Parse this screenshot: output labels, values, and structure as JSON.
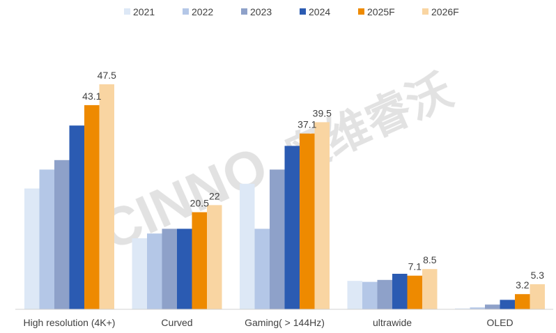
{
  "chart_data": {
    "type": "bar",
    "title": "",
    "xlabel": "",
    "ylabel": "",
    "ylim": [
      0,
      55
    ],
    "legend_position": "top",
    "categories": [
      "High resolution (4K+)",
      "Curved",
      "Gaming( > 144Hz)",
      "ultrawide",
      "OLED"
    ],
    "series": [
      {
        "name": "2021",
        "color": "#dde8f6",
        "values": [
          25.5,
          15.0,
          26.5,
          6.0,
          0.2
        ],
        "labels": [
          "",
          "",
          "",
          "",
          ""
        ]
      },
      {
        "name": "2022",
        "color": "#b4c7e7",
        "values": [
          29.5,
          16.0,
          17.0,
          5.8,
          0.4
        ],
        "labels": [
          "",
          "",
          "",
          "",
          ""
        ]
      },
      {
        "name": "2023",
        "color": "#8ea1c9",
        "values": [
          31.5,
          17.0,
          29.5,
          6.2,
          1.0
        ],
        "labels": [
          "",
          "",
          "",
          "",
          ""
        ]
      },
      {
        "name": "2024",
        "color": "#2b5bb2",
        "values": [
          38.8,
          17.0,
          34.5,
          7.5,
          2.0
        ],
        "labels": [
          "",
          "",
          "",
          "",
          ""
        ]
      },
      {
        "name": "2025F",
        "color": "#ee8a00",
        "values": [
          43.1,
          20.5,
          37.1,
          7.1,
          3.2
        ],
        "labels": [
          "43.1",
          "20.5",
          "37.1",
          "7.1",
          "3.2"
        ]
      },
      {
        "name": "2026F",
        "color": "#f9d5a2",
        "values": [
          47.5,
          22.0,
          39.5,
          8.5,
          5.3
        ],
        "labels": [
          "47.5",
          "22",
          "39.5",
          "8.5",
          "5.3"
        ]
      }
    ]
  },
  "watermark": {
    "brand": "CINNO",
    "text": "奥维睿沃"
  }
}
